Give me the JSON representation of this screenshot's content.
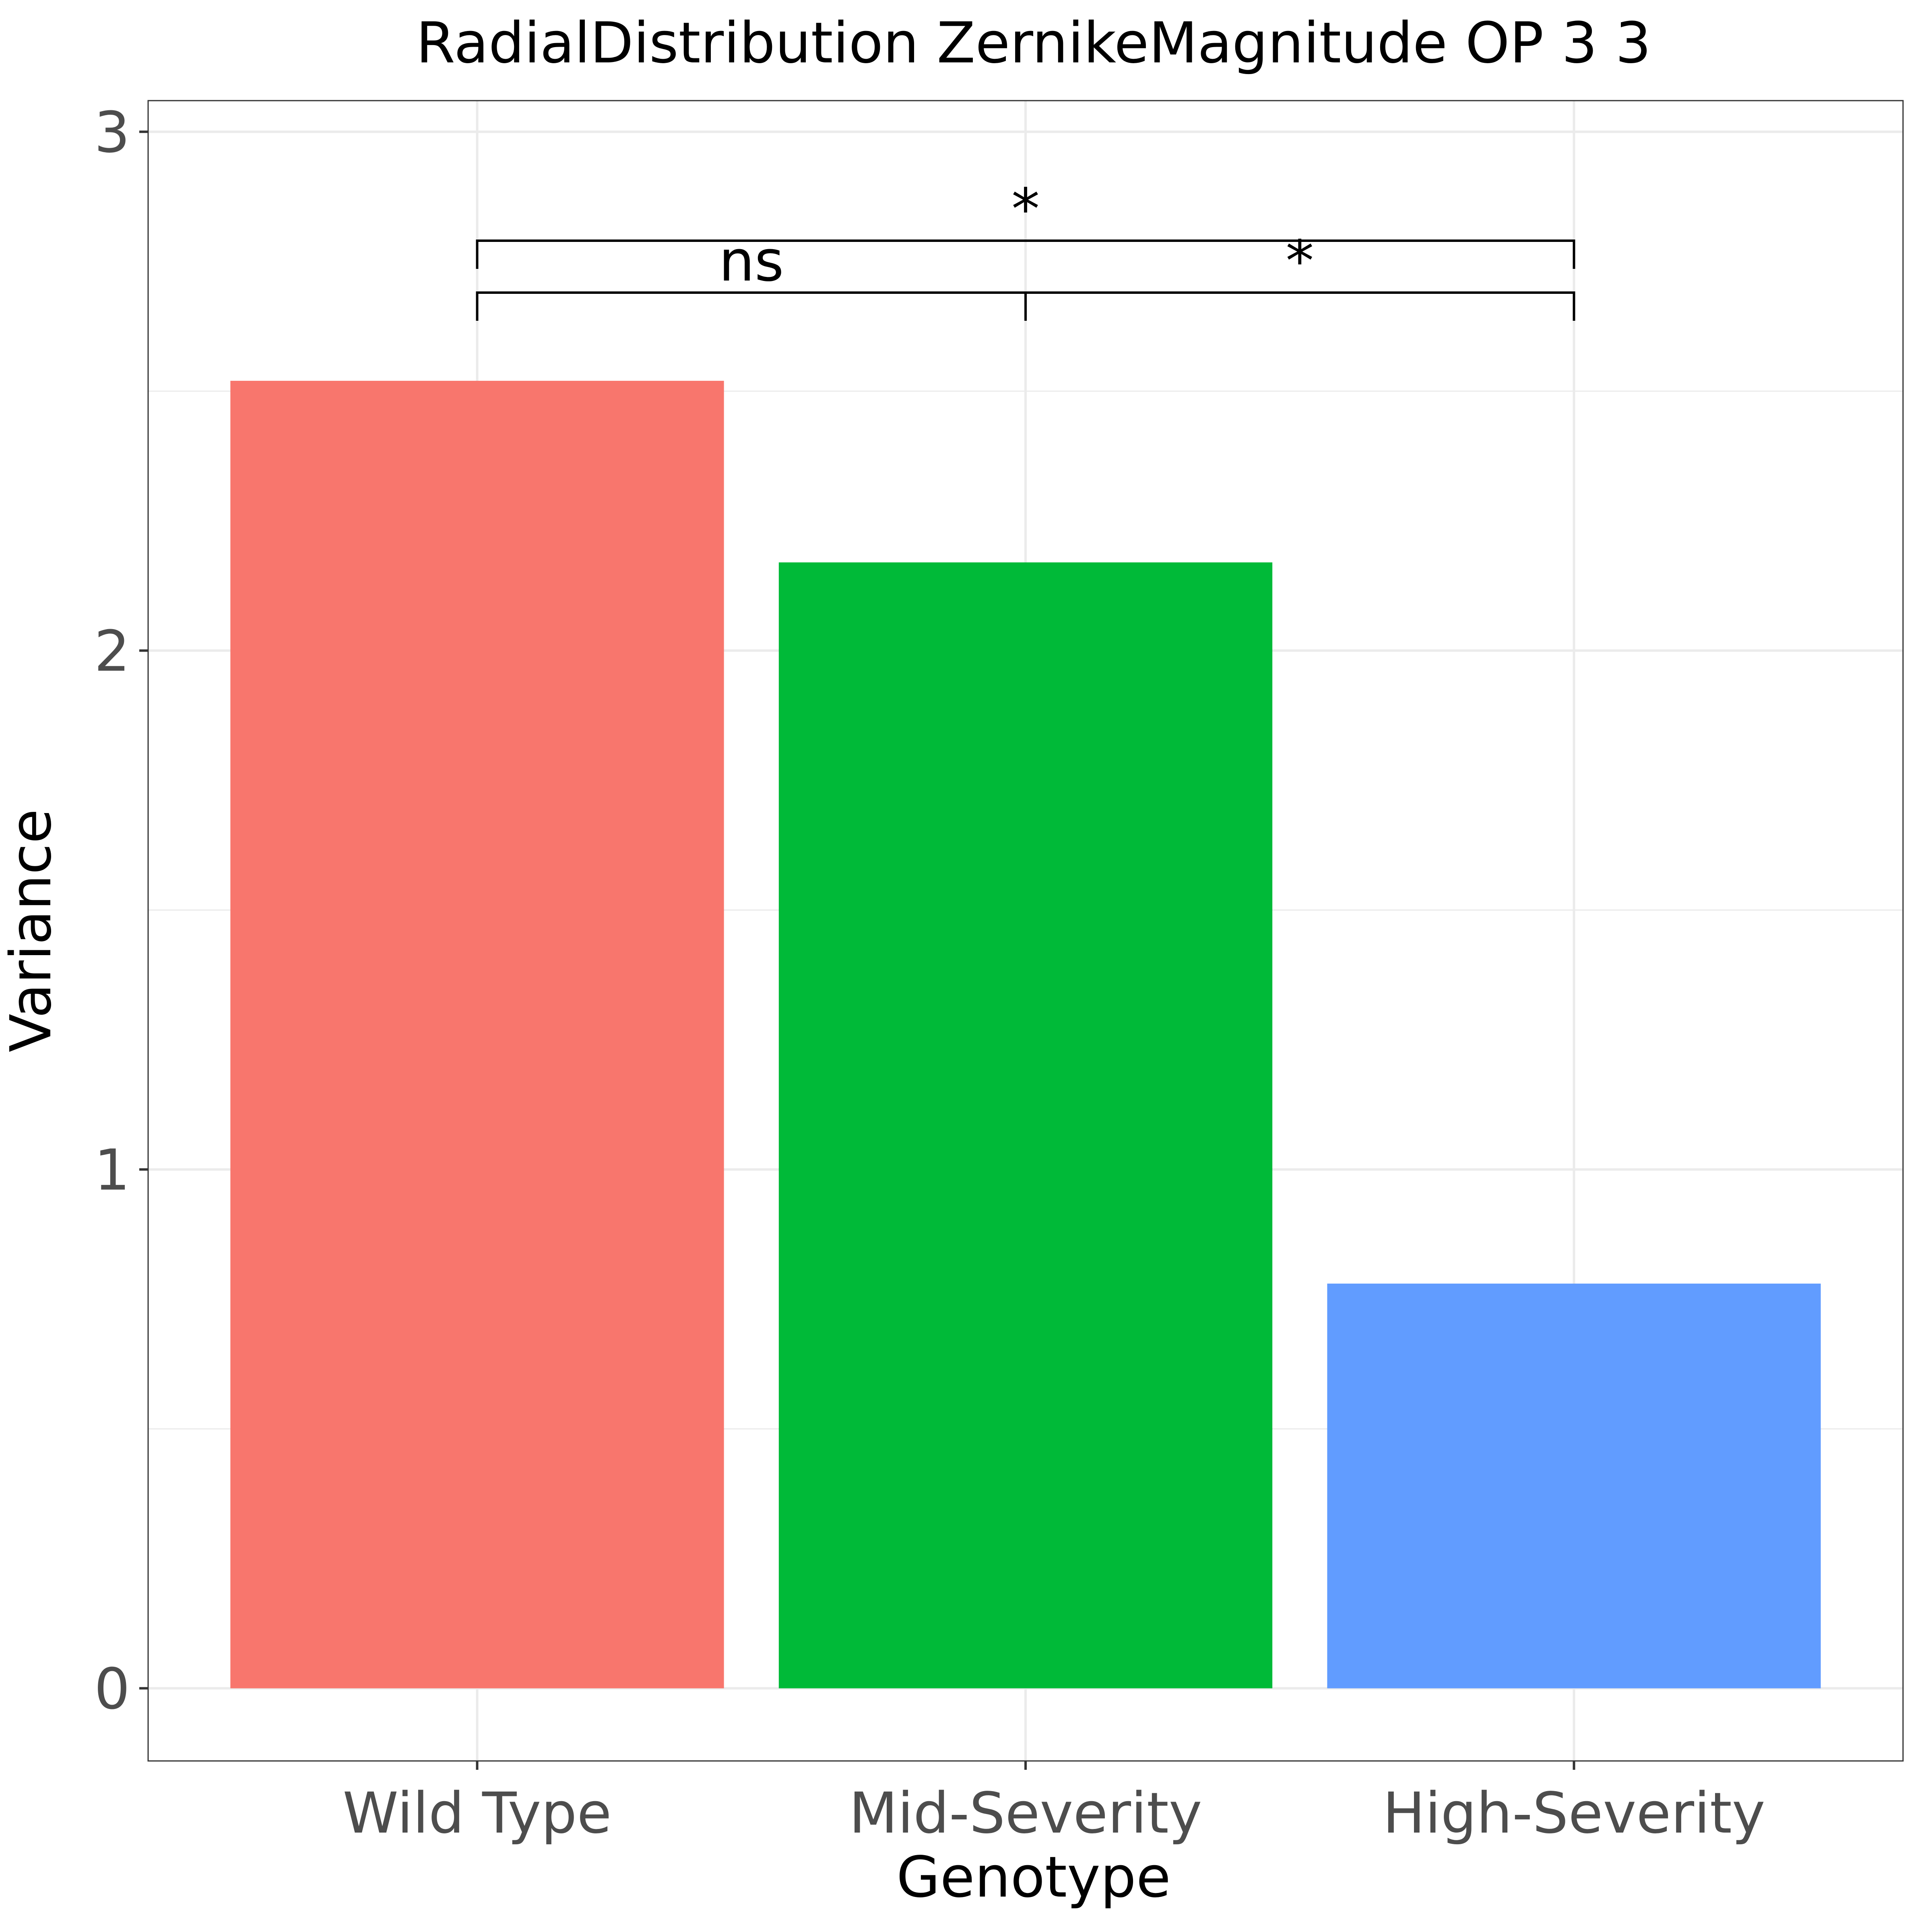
{
  "chart_data": {
    "type": "bar",
    "title": "RadialDistribution ZernikeMagnitude OP 3 3",
    "xlabel": "Genotype",
    "ylabel": "Variance",
    "categories": [
      "Wild Type",
      "Mid-Severity",
      "High-Severity"
    ],
    "values": [
      2.52,
      2.17,
      0.78
    ],
    "colors": [
      "#F8766D",
      "#00BA38",
      "#619CFF"
    ],
    "ylim": [
      -0.14,
      3.06
    ],
    "yticks": [
      0,
      1,
      2,
      3
    ],
    "grid": true,
    "legend": "none",
    "comparisons": [
      {
        "from": 0,
        "to": 1,
        "label": "ns",
        "y": 2.69
      },
      {
        "from": 1,
        "to": 2,
        "label": "*",
        "y": 2.69
      },
      {
        "from": 0,
        "to": 2,
        "label": "*",
        "y": 2.79
      }
    ]
  }
}
